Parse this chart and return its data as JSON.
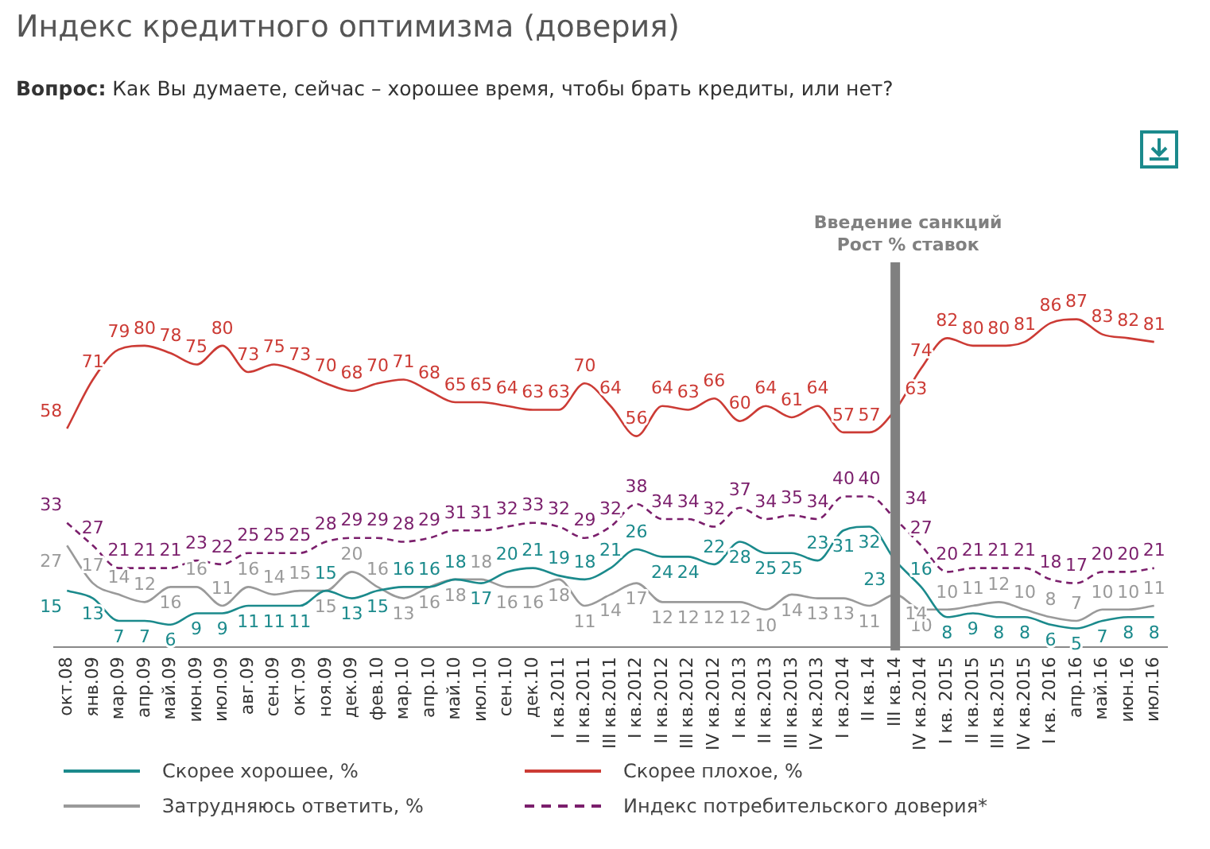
{
  "chart_data": {
    "type": "line",
    "title": "Индекс кредитного оптимизма (доверия)",
    "subtitle": "Вопрос: Как Вы думаете, сейчас – хорошее время, чтобы брать кредиты, или нет?",
    "categories": [
      "окт.08",
      "янв.09",
      "мар.09",
      "апр.09",
      "май.09",
      "июн.09",
      "июл.09",
      "авг.09",
      "сен.09",
      "окт.09",
      "ноя.09",
      "дек.09",
      "фев.10",
      "мар.10",
      "апр.10",
      "май.10",
      "июл.10",
      "сен.10",
      "дек.10",
      "I кв.2011",
      "II кв.2011",
      "III кв.2011",
      "I кв.2012",
      "II кв.2012",
      "III кв.2012",
      "IV кв.2012",
      "I кв.2013",
      "II кв.2013",
      "III кв.2013",
      "IV кв.2013",
      "I кв.2014",
      "II кв.14",
      "III кв.14",
      "IV кв.2014",
      "I кв. 2015",
      "II кв.2015",
      "III кв.2015",
      "IV кв.2015",
      "I кв. 2016",
      "апр.16",
      "май.16",
      "июн.16",
      "июл.16"
    ],
    "series": [
      {
        "name": "Скорее хорошее, %",
        "color": "#1b8a8c",
        "line_style": "solid",
        "values": [
          15,
          13,
          7,
          7,
          6,
          9,
          9,
          11,
          11,
          11,
          15,
          13,
          15,
          16,
          16,
          18,
          17,
          20,
          21,
          19,
          18,
          21,
          26,
          24,
          24,
          22,
          28,
          25,
          25,
          23,
          31,
          32,
          23,
          16,
          8,
          9,
          8,
          8,
          6,
          5,
          7,
          8,
          8
        ]
      },
      {
        "name": "Скорее плохое, %",
        "color": "#cc3b35",
        "line_style": "solid",
        "values": [
          58,
          71,
          79,
          80,
          78,
          75,
          80,
          73,
          75,
          73,
          70,
          68,
          70,
          71,
          68,
          65,
          65,
          64,
          63,
          63,
          70,
          64,
          56,
          64,
          63,
          66,
          60,
          64,
          61,
          64,
          57,
          57,
          63,
          74,
          82,
          80,
          80,
          81,
          86,
          87,
          83,
          82,
          81
        ]
      },
      {
        "name": "Затрудняюсь ответить, %",
        "color": "#9a9a9a",
        "line_style": "solid",
        "values": [
          27,
          17,
          14,
          12,
          16,
          16,
          11,
          16,
          14,
          15,
          15,
          20,
          16,
          13,
          16,
          18,
          18,
          16,
          16,
          18,
          11,
          14,
          17,
          12,
          12,
          12,
          12,
          10,
          14,
          13,
          13,
          11,
          14,
          10,
          10,
          11,
          12,
          10,
          8,
          7,
          10,
          10,
          11
        ]
      },
      {
        "name": "Индекс потребительского доверия*",
        "color": "#7b1f6c",
        "line_style": "dashed",
        "values": [
          33,
          27,
          21,
          21,
          21,
          23,
          22,
          25,
          25,
          25,
          28,
          29,
          29,
          28,
          29,
          31,
          31,
          32,
          33,
          32,
          29,
          32,
          38,
          34,
          34,
          32,
          37,
          34,
          35,
          34,
          40,
          40,
          34,
          27,
          20,
          21,
          21,
          21,
          18,
          17,
          20,
          20,
          21
        ]
      }
    ],
    "tick_labels": "x",
    "grid": false,
    "legend": "bottom",
    "marker": "none",
    "data_labels": true,
    "ref_lines": [
      {
        "axis": "x",
        "value": "III кв.14",
        "label": "Введение санкций\nРост % ставок",
        "color": "#808080"
      }
    ]
  }
}
